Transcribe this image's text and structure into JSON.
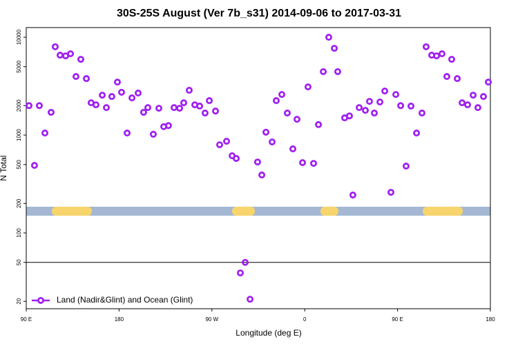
{
  "chart_data": {
    "type": "scatter",
    "title": "30S-25S August (Ver 7b_s31)   2014-09-06 to 2017-03-31",
    "xlabel": "Longitude (deg E)",
    "ylabel": "N Total",
    "log_y": true,
    "color": "#a020f0",
    "legend_position": "bottom-left",
    "xlim": [
      90,
      540
    ],
    "xticks": [
      {
        "value": 90,
        "label": "90 E"
      },
      180,
      {
        "value": 270,
        "label": "90 W"
      },
      {
        "value": 360,
        "label": "0"
      },
      {
        "value": 450,
        "label": "90 E"
      },
      {
        "value": 540,
        "label": "180"
      }
    ],
    "ylim": [
      16.8,
      12560
    ],
    "yticks": [
      20,
      50,
      100,
      200,
      500,
      1000,
      2000,
      5000,
      10000
    ],
    "hline": 50,
    "series": [
      {
        "name": "Land (Nadir&Glint) and Ocean (Glint)",
        "color": "#a020f0",
        "x": [
          92.7,
          98.0,
          102.7,
          108.1,
          114.1,
          118.1,
          122.8,
          128.2,
          132.9,
          138.2,
          142.9,
          148.3,
          152.9,
          157.6,
          163.7,
          167.7,
          173.0,
          178.4,
          182.4,
          187.8,
          192.5,
          198.5,
          203.8,
          207.9,
          213.2,
          218.6,
          223.3,
          227.9,
          233.3,
          238.7,
          242.7,
          248.0,
          253.4,
          258.1,
          263.4,
          267.5,
          273.5,
          277.5,
          284.2,
          289.6,
          293.6,
          297.6,
          302.3,
          307.0,
          314.3,
          318.4,
          322.4,
          328.4,
          332.4,
          337.8,
          343.1,
          348.5,
          352.5,
          357.9,
          363.2,
          368.6,
          373.3,
          378.0,
          383.3,
          388.7,
          392.0,
          398.7,
          403.4,
          406.7,
          412.8,
          418.8,
          422.8,
          427.5,
          432.9,
          437.6,
          443.6,
          448.3,
          453.0,
          458.3,
          463.0,
          468.4,
          473.7,
          477.7,
          483.1,
          487.8,
          493.1,
          497.8,
          502.5,
          507.9,
          512.6,
          517.9,
          523.3,
          527.9,
          533.3,
          538.0
        ],
        "values": [
          2000,
          490,
          2000,
          1050,
          1710,
          8000,
          6560,
          6450,
          6780,
          3970,
          5950,
          3780,
          2140,
          2040,
          2560,
          1910,
          2480,
          3480,
          2740,
          1050,
          2400,
          2690,
          1710,
          1910,
          1020,
          1880,
          1220,
          1250,
          1910,
          1880,
          2140,
          2870,
          2040,
          1980,
          1680,
          2250,
          1760,
          796,
          865,
          615,
          577,
          39,
          50,
          21,
          531,
          391,
          1070,
          851,
          2250,
          2600,
          1680,
          723,
          1450,
          523,
          3110,
          514,
          1280,
          4450,
          10000,
          7710,
          4450,
          1500,
          1570,
          244,
          1910,
          1790,
          2210,
          1680,
          2180,
          2820,
          260,
          2600,
          2000,
          482,
          1980,
          1050,
          1680,
          8000,
          6560,
          6450,
          6780,
          3970,
          5950,
          3780,
          2140,
          2040,
          2560,
          1910,
          2480,
          3480
        ]
      }
    ]
  }
}
